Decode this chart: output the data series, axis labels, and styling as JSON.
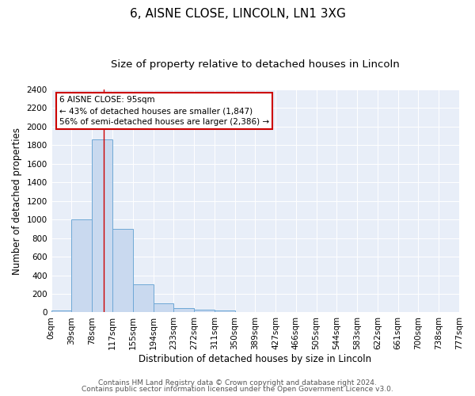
{
  "title": "6, AISNE CLOSE, LINCOLN, LN1 3XG",
  "subtitle": "Size of property relative to detached houses in Lincoln",
  "xlabel": "Distribution of detached houses by size in Lincoln",
  "ylabel": "Number of detached properties",
  "bar_values": [
    20,
    1000,
    1860,
    900,
    300,
    100,
    50,
    30,
    20,
    0,
    0,
    0,
    0,
    0,
    0,
    0,
    0,
    0,
    0,
    0
  ],
  "bin_labels": [
    "0sqm",
    "39sqm",
    "78sqm",
    "117sqm",
    "155sqm",
    "194sqm",
    "233sqm",
    "272sqm",
    "311sqm",
    "350sqm",
    "389sqm",
    "427sqm",
    "466sqm",
    "505sqm",
    "544sqm",
    "583sqm",
    "622sqm",
    "661sqm",
    "700sqm",
    "738sqm",
    "777sqm"
  ],
  "bar_color": "#c9d9ef",
  "bar_edge_color": "#6fa8d6",
  "red_line_x": 2.57,
  "ylim": [
    0,
    2400
  ],
  "yticks": [
    0,
    200,
    400,
    600,
    800,
    1000,
    1200,
    1400,
    1600,
    1800,
    2000,
    2200,
    2400
  ],
  "annotation_title": "6 AISNE CLOSE: 95sqm",
  "annotation_line1": "← 43% of detached houses are smaller (1,847)",
  "annotation_line2": "56% of semi-detached houses are larger (2,386) →",
  "annotation_box_color": "#ffffff",
  "annotation_box_edge": "#cc0000",
  "footer_line1": "Contains HM Land Registry data © Crown copyright and database right 2024.",
  "footer_line2": "Contains public sector information licensed under the Open Government Licence v3.0.",
  "plot_bg_color": "#e8eef8",
  "figure_bg_color": "#ffffff",
  "grid_color": "#ffffff",
  "title_fontsize": 11,
  "subtitle_fontsize": 9.5,
  "axis_label_fontsize": 8.5,
  "tick_fontsize": 7.5,
  "footer_fontsize": 6.5
}
